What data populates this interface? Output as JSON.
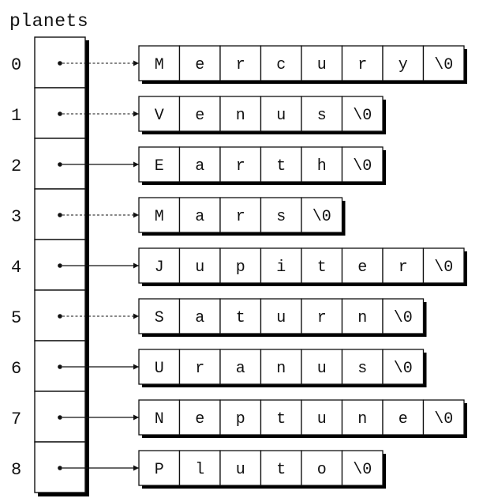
{
  "title": "planets",
  "indices": [
    "0",
    "1",
    "2",
    "3",
    "4",
    "5",
    "6",
    "7",
    "8"
  ],
  "strings": [
    [
      "M",
      "e",
      "r",
      "c",
      "u",
      "r",
      "y",
      "\\0"
    ],
    [
      "V",
      "e",
      "n",
      "u",
      "s",
      "\\0"
    ],
    [
      "E",
      "a",
      "r",
      "t",
      "h",
      "\\0"
    ],
    [
      "M",
      "a",
      "r",
      "s",
      "\\0"
    ],
    [
      "J",
      "u",
      "p",
      "i",
      "t",
      "e",
      "r",
      "\\0"
    ],
    [
      "S",
      "a",
      "t",
      "u",
      "r",
      "n",
      "\\0"
    ],
    [
      "U",
      "r",
      "a",
      "n",
      "u",
      "s",
      "\\0"
    ],
    [
      "N",
      "e",
      "p",
      "t",
      "u",
      "n",
      "e",
      "\\0"
    ],
    [
      "P",
      "l",
      "u",
      "t",
      "o",
      "\\0"
    ]
  ],
  "colors": {
    "ink": "#111111",
    "shadow": "#000000",
    "background": "#ffffff"
  }
}
